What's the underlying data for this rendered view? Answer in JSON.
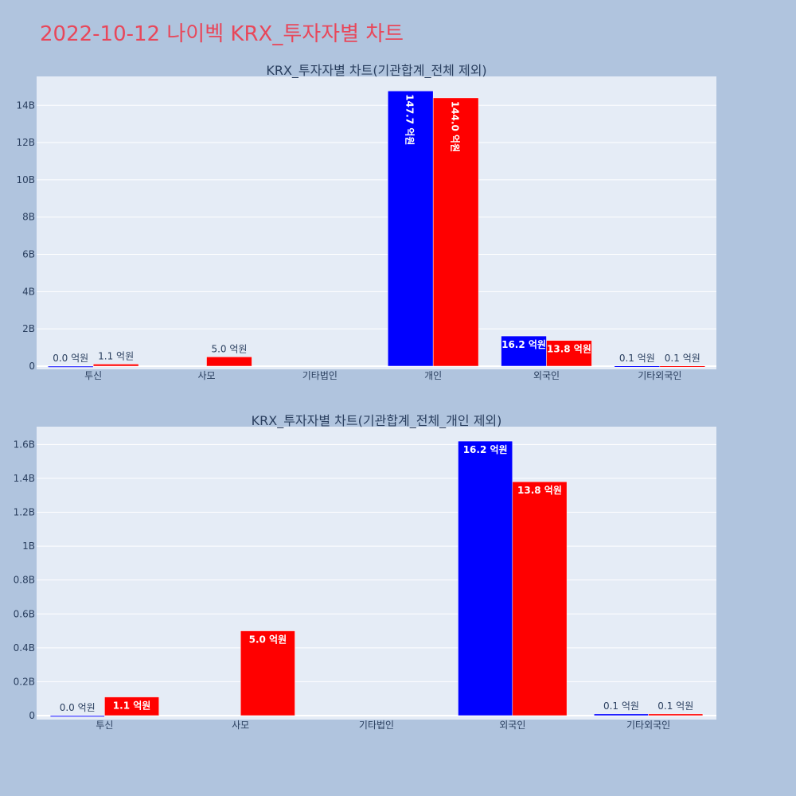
{
  "page": {
    "title": "2022-10-12 나이벡 KRX_투자자별 차트"
  },
  "colors": {
    "page_background": "#b0c4de",
    "plot_background": "#e5ecf6",
    "title": "#e8475a",
    "series_blue": "#0000ff",
    "series_red": "#ff0000"
  },
  "chart_data": [
    {
      "type": "bar",
      "title": "KRX_투자자별 차트(기관합계_전체 제외)",
      "categories": [
        "투신",
        "사모",
        "기타법인",
        "개인",
        "외국인",
        "기타외국인"
      ],
      "series": [
        {
          "color": "#0000ff",
          "values": [
            0,
            null,
            null,
            14770000000,
            1620000000,
            10000000
          ],
          "labels": [
            "0.0 억원",
            null,
            null,
            "147.7 억원",
            "16.2 억원",
            "0.1 억원"
          ]
        },
        {
          "color": "#ff0000",
          "values": [
            110000000,
            500000000,
            null,
            14400000000,
            1380000000,
            10000000
          ],
          "labels": [
            "1.1 억원",
            "5.0 억원",
            null,
            "144.0 억원",
            "13.8 억원",
            "0.1 억원"
          ]
        }
      ],
      "yticks": [
        0,
        2000000000,
        4000000000,
        6000000000,
        8000000000,
        10000000000,
        12000000000,
        14000000000
      ],
      "ytick_labels": [
        "0",
        "2B",
        "4B",
        "6B",
        "8B",
        "10B",
        "12B",
        "14B"
      ],
      "ylim": [
        0,
        15550000000
      ],
      "grid": true
    },
    {
      "type": "bar",
      "title": "KRX_투자자별 차트(기관합계_전체_개인 제외)",
      "categories": [
        "투신",
        "사모",
        "기타법인",
        "외국인",
        "기타외국인"
      ],
      "series": [
        {
          "color": "#0000ff",
          "values": [
            0,
            null,
            null,
            1620000000,
            10000000
          ],
          "labels": [
            "0.0 억원",
            null,
            null,
            "16.2 억원",
            "0.1 억원"
          ]
        },
        {
          "color": "#ff0000",
          "values": [
            110000000,
            500000000,
            null,
            1380000000,
            10000000
          ],
          "labels": [
            "1.1 억원",
            "5.0 억원",
            null,
            "13.8 억원",
            "0.1 억원"
          ]
        }
      ],
      "yticks": [
        0,
        200000000,
        400000000,
        600000000,
        800000000,
        1000000000,
        1200000000,
        1400000000,
        1600000000
      ],
      "ytick_labels": [
        "0",
        "0.2B",
        "0.4B",
        "0.6B",
        "0.8B",
        "1B",
        "1.2B",
        "1.4B",
        "1.6B"
      ],
      "ylim": [
        0,
        1705000000
      ],
      "grid": true
    }
  ]
}
